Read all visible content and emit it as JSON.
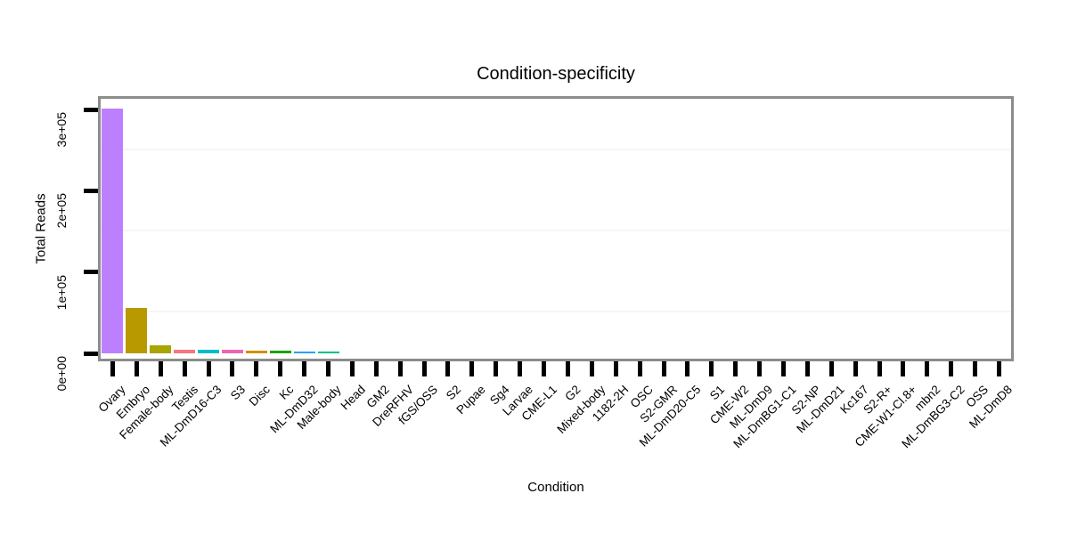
{
  "chart_data": {
    "type": "bar",
    "title": "Condition-specificity",
    "xlabel": "Condition",
    "ylabel": "Total Reads",
    "ylim": [
      0,
      320000
    ],
    "legend": "none",
    "grid": "faint horizontal minor gridlines only",
    "bar_width_fraction": 0.9,
    "y_ticks": [
      {
        "label": "0e+00",
        "value": 0
      },
      {
        "label": "1e+05",
        "value": 100000
      },
      {
        "label": "2e+05",
        "value": 200000
      },
      {
        "label": "3e+05",
        "value": 300000
      }
    ],
    "minor_gridlines": [
      50000,
      150000,
      250000
    ],
    "categories": [
      "Ovary",
      "Embryo",
      "Female-body",
      "Testis",
      "ML-DmD16-C3",
      "S3",
      "Disc",
      "Kc",
      "ML-DmD32",
      "Male-body",
      "Head",
      "GM2",
      "DreRFHV",
      "fGS/OSS",
      "S2",
      "Pupae",
      "Sg4",
      "Larvae",
      "CME-L1",
      "G2",
      "Mixed-body",
      "1182-2H",
      "OSC",
      "S2-GMR",
      "ML-DmD20-C5",
      "S1",
      "CME-W2",
      "ML-DmD9",
      "ML-DmBG1-C1",
      "S2-NP",
      "ML-DmD21",
      "Kc167",
      "S2-R+",
      "CME-W1-Cl.8+",
      "mbn2",
      "ML-DmBG3-C2",
      "OSS",
      "ML-DmD8"
    ],
    "values": [
      301000,
      56000,
      10000,
      4500,
      4500,
      4000,
      3000,
      2800,
      2700,
      2600,
      0,
      0,
      0,
      0,
      0,
      0,
      0,
      0,
      0,
      0,
      0,
      0,
      0,
      0,
      0,
      0,
      0,
      0,
      0,
      0,
      0,
      0,
      0,
      0,
      0,
      0,
      0,
      0
    ],
    "bar_colors": [
      "#BC80FF",
      "#B89A00",
      "#A9A400",
      "#F8757E",
      "#00BCCC",
      "#F065B4",
      "#D08F00",
      "#16A400",
      "#29A3F4",
      "#00BE8D",
      null,
      null,
      null,
      null,
      null,
      null,
      null,
      null,
      null,
      null,
      null,
      null,
      null,
      null,
      null,
      null,
      null,
      null,
      null,
      null,
      null,
      null,
      null,
      null,
      null,
      null,
      null,
      null
    ]
  },
  "style": {
    "panel_border_color": "#8C8C8C",
    "tick_color": "#000000",
    "text_color": "#000000",
    "gridline_color": "#F6F6F6",
    "background": "#FFFFFF"
  }
}
